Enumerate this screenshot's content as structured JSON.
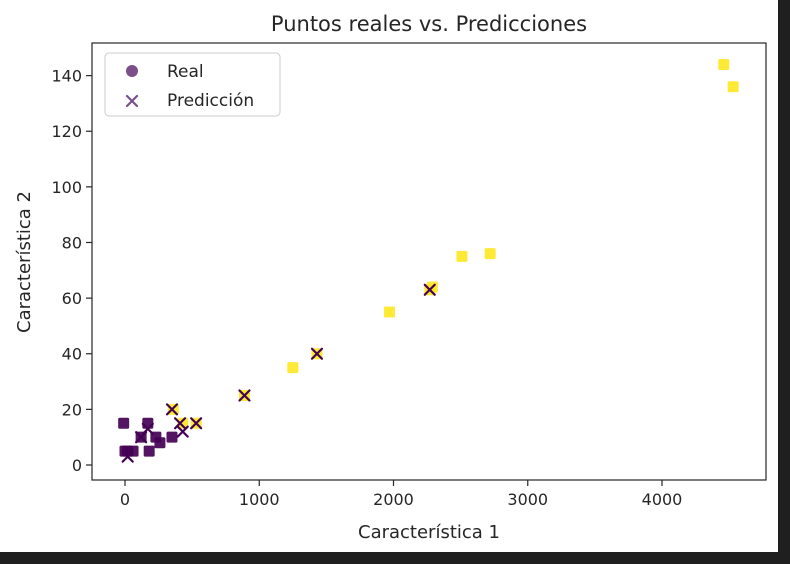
{
  "chart_data": {
    "type": "scatter",
    "title": "Puntos reales vs. Predicciones",
    "xlabel": "Característica 1",
    "ylabel": "Característica 2",
    "xlim": [
      -200,
      4700
    ],
    "ylim": [
      -5,
      152
    ],
    "x_ticks": [
      0,
      1000,
      2000,
      3000,
      4000
    ],
    "y_ticks": [
      0,
      20,
      40,
      60,
      80,
      100,
      120,
      140
    ],
    "grid": false,
    "legend": {
      "position": "top-left",
      "entries": [
        {
          "label": "Real",
          "marker": "circle",
          "color": "#7a4f8a"
        },
        {
          "label": "Predicción",
          "marker": "x",
          "color": "#7a4f8a"
        }
      ]
    },
    "colors": {
      "cluster_dark": "#440154",
      "cluster_light": "#fde725",
      "legend_marker": "#7a4f8a"
    },
    "real_points": [
      {
        "x": -10,
        "y": 15,
        "cluster": "dark"
      },
      {
        "x": 0,
        "y": 5,
        "cluster": "dark"
      },
      {
        "x": 20,
        "y": 5,
        "cluster": "dark"
      },
      {
        "x": 60,
        "y": 5,
        "cluster": "dark"
      },
      {
        "x": 120,
        "y": 10,
        "cluster": "dark"
      },
      {
        "x": 170,
        "y": 15,
        "cluster": "dark"
      },
      {
        "x": 180,
        "y": 5,
        "cluster": "dark"
      },
      {
        "x": 230,
        "y": 10,
        "cluster": "dark"
      },
      {
        "x": 260,
        "y": 8,
        "cluster": "dark"
      },
      {
        "x": 350,
        "y": 10,
        "cluster": "dark"
      },
      {
        "x": 360,
        "y": 20,
        "cluster": "light"
      },
      {
        "x": 430,
        "y": 15,
        "cluster": "light"
      },
      {
        "x": 530,
        "y": 15,
        "cluster": "light"
      },
      {
        "x": 890,
        "y": 25,
        "cluster": "light"
      },
      {
        "x": 1250,
        "y": 35,
        "cluster": "light"
      },
      {
        "x": 1430,
        "y": 40,
        "cluster": "light"
      },
      {
        "x": 1970,
        "y": 55,
        "cluster": "light"
      },
      {
        "x": 2270,
        "y": 63,
        "cluster": "light"
      },
      {
        "x": 2290,
        "y": 64,
        "cluster": "light"
      },
      {
        "x": 2510,
        "y": 75,
        "cluster": "light"
      },
      {
        "x": 2720,
        "y": 76,
        "cluster": "light"
      },
      {
        "x": 4460,
        "y": 144,
        "cluster": "light"
      },
      {
        "x": 4530,
        "y": 136,
        "cluster": "light"
      }
    ],
    "predicted_points": [
      {
        "x": 20,
        "y": 3,
        "cluster": "dark"
      },
      {
        "x": 120,
        "y": 10,
        "cluster": "dark"
      },
      {
        "x": 170,
        "y": 13,
        "cluster": "dark"
      },
      {
        "x": 350,
        "y": 20,
        "cluster": "dark"
      },
      {
        "x": 410,
        "y": 15,
        "cluster": "dark"
      },
      {
        "x": 430,
        "y": 12,
        "cluster": "dark"
      },
      {
        "x": 530,
        "y": 15,
        "cluster": "dark"
      },
      {
        "x": 890,
        "y": 25,
        "cluster": "dark"
      },
      {
        "x": 1430,
        "y": 40,
        "cluster": "dark"
      },
      {
        "x": 2270,
        "y": 63,
        "cluster": "dark"
      }
    ]
  }
}
